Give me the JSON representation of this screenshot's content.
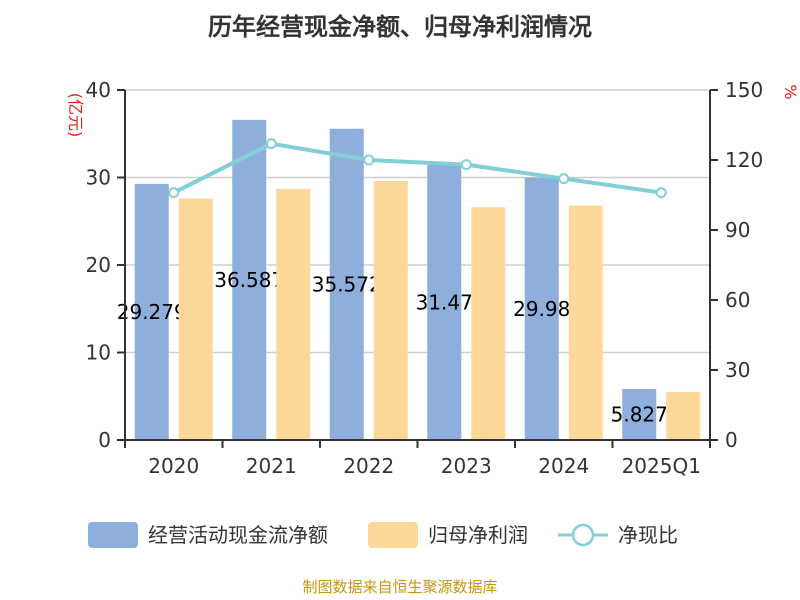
{
  "chart_data": {
    "type": "bar",
    "title": "历年经营现金净额、归母净利润情况",
    "categories": [
      "2020",
      "2021",
      "2022",
      "2023",
      "2024",
      "2025Q1"
    ],
    "series": [
      {
        "name": "经营活动现金流净额",
        "type": "bar",
        "axis": "left",
        "color": "#8eaedb",
        "values": [
          29.279,
          36.587,
          35.572,
          31.47,
          29.98,
          5.827
        ],
        "labels": [
          "29.279",
          "36.587",
          "35.572",
          "31.47",
          "29.98",
          "5.827"
        ]
      },
      {
        "name": "归母净利润",
        "type": "bar",
        "axis": "left",
        "color": "#fdd899",
        "values": [
          27.6,
          28.7,
          29.6,
          26.6,
          26.8,
          5.5
        ]
      },
      {
        "name": "净现比",
        "type": "line",
        "axis": "right",
        "color": "#82d0d6",
        "values": [
          106,
          127,
          120,
          118,
          112,
          106
        ]
      }
    ],
    "y_left": {
      "unit": "(亿元)",
      "range": [
        0,
        40
      ],
      "ticks": [
        0,
        10,
        20,
        30,
        40
      ]
    },
    "y_right": {
      "unit": "%",
      "range": [
        0,
        150
      ],
      "ticks": [
        0,
        30,
        60,
        90,
        120,
        150
      ]
    },
    "grid": true,
    "legend": "bottom"
  },
  "source": "制图数据来自恒生聚源数据库"
}
